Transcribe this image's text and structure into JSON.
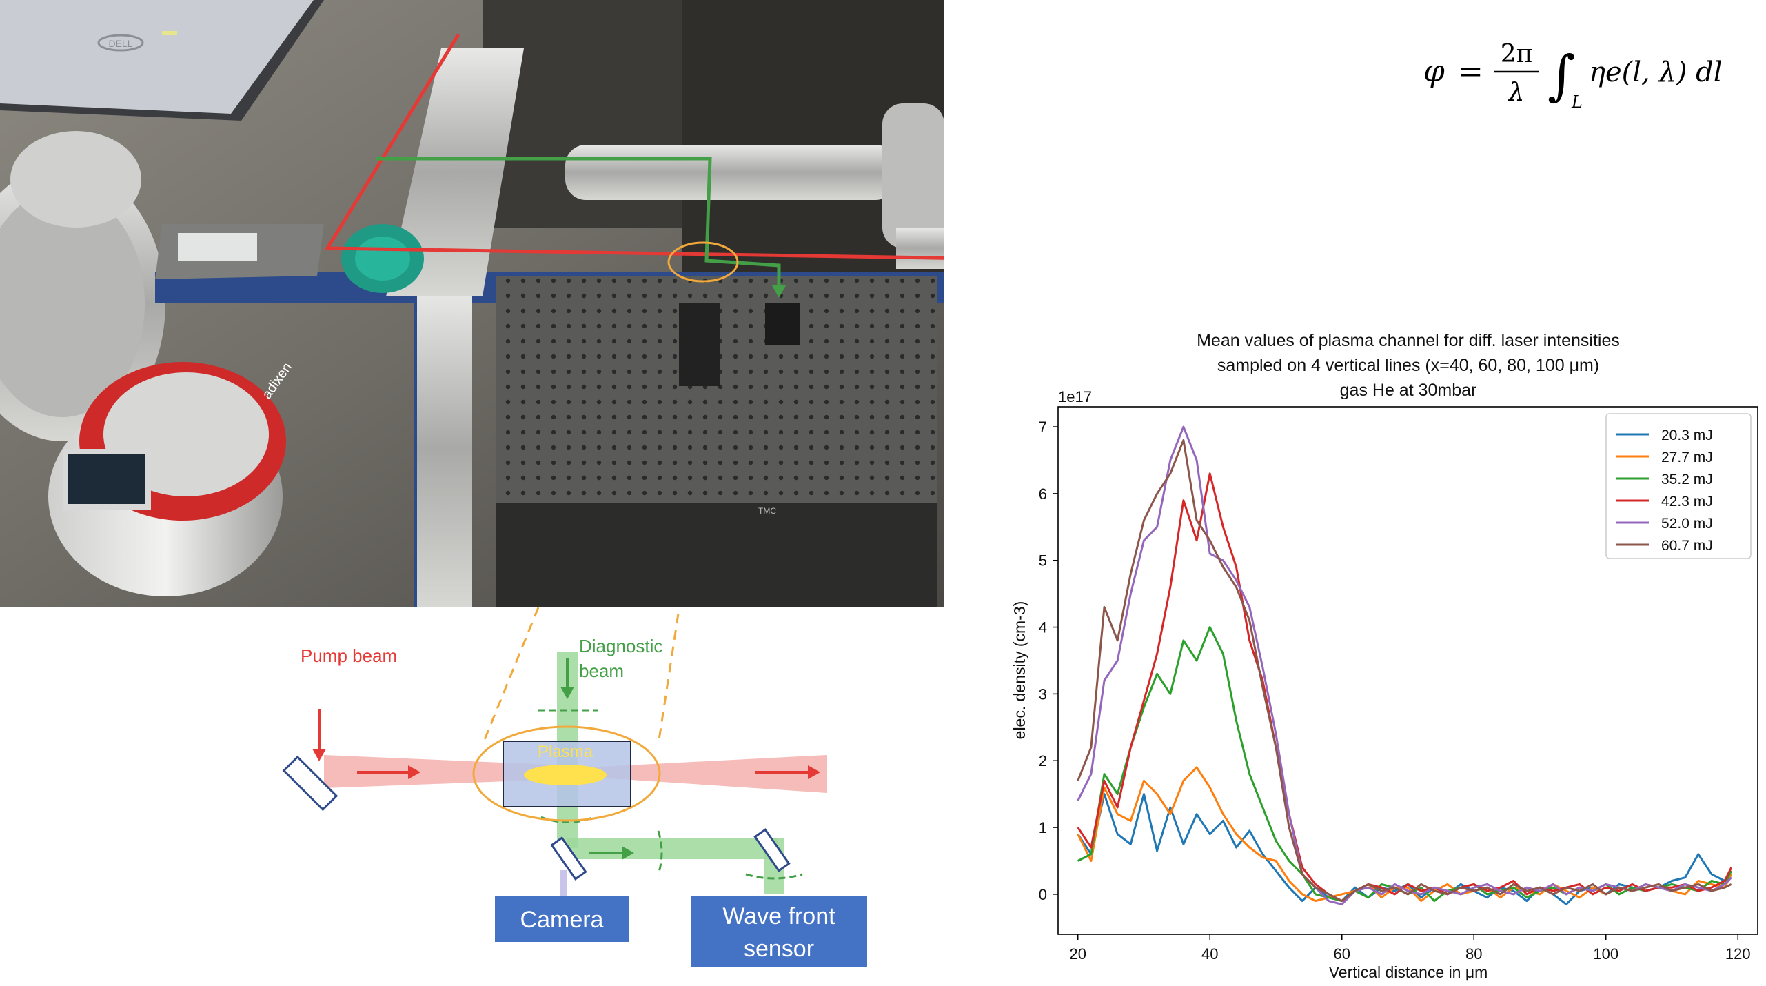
{
  "photo": {
    "laptop_logo": "DELL",
    "pump_brand": "adixen",
    "table_label": "TMC"
  },
  "equation": {
    "lhs": "φ",
    "equals": "=",
    "num": "2π",
    "den": "λ",
    "integral": "∫",
    "sub": "L",
    "body": "ηe(l, λ) dl"
  },
  "schematic": {
    "pump_label": "Pump beam",
    "diag_label_1": "Diagnostic",
    "diag_label_2": "beam",
    "plasma_label": "Plasma",
    "camera_label": "Camera",
    "wfs_label_1": "Wave front",
    "wfs_label_2": "sensor"
  },
  "colors": {
    "pump": "#e53935",
    "diag": "#43a047",
    "ellipse": "#f2a93b",
    "box": "#4472c4",
    "plasma": "#ffe14d"
  },
  "chart_data": {
    "type": "line",
    "title": [
      "Mean values of plasma channel for diff. laser intensities",
      "sampled on 4 vertical lines (x=40, 60, 80, 100 μm)",
      "gas He at 30mbar"
    ],
    "xlabel": "Vertical distance in μm",
    "ylabel": "elec. density (cm-3)",
    "offset_label": "1e17",
    "xlim": [
      17,
      123
    ],
    "ylim": [
      -0.6,
      7.3
    ],
    "xticks": [
      20,
      40,
      60,
      80,
      100,
      120
    ],
    "yticks": [
      0,
      1,
      2,
      3,
      4,
      5,
      6,
      7
    ],
    "legend_position": "top-right",
    "x": [
      20,
      22,
      24,
      26,
      28,
      30,
      32,
      34,
      36,
      38,
      40,
      42,
      44,
      46,
      48,
      50,
      52,
      54,
      56,
      58,
      60,
      62,
      64,
      66,
      68,
      70,
      72,
      74,
      76,
      78,
      80,
      82,
      84,
      86,
      88,
      90,
      92,
      94,
      96,
      98,
      100,
      102,
      104,
      106,
      108,
      110,
      112,
      114,
      116,
      118,
      119
    ],
    "series": [
      {
        "name": "20.3 mJ",
        "color": "#1f77b4",
        "values": [
          0.9,
          0.6,
          1.5,
          0.9,
          0.75,
          1.5,
          0.65,
          1.3,
          0.75,
          1.2,
          0.9,
          1.1,
          0.7,
          0.95,
          0.6,
          0.35,
          0.1,
          -0.1,
          0.1,
          -0.05,
          -0.1,
          0.1,
          -0.05,
          0.1,
          0.05,
          0.15,
          -0.05,
          0.1,
          0.0,
          0.15,
          0.05,
          -0.05,
          0.1,
          0.05,
          -0.1,
          0.1,
          0.0,
          -0.15,
          0.05,
          0.1,
          0.0,
          0.15,
          0.1,
          0.05,
          0.1,
          0.2,
          0.25,
          0.6,
          0.3,
          0.2,
          0.25
        ]
      },
      {
        "name": "27.7 mJ",
        "color": "#ff7f0e",
        "values": [
          0.9,
          0.5,
          1.6,
          1.2,
          1.1,
          1.7,
          1.5,
          1.2,
          1.7,
          1.9,
          1.6,
          1.2,
          0.9,
          0.7,
          0.55,
          0.5,
          0.2,
          0.0,
          -0.1,
          -0.05,
          0.0,
          0.05,
          0.15,
          -0.05,
          0.1,
          0.1,
          -0.1,
          0.05,
          0.15,
          0.0,
          0.05,
          0.1,
          -0.05,
          0.1,
          0.05,
          0.0,
          0.15,
          0.05,
          -0.05,
          0.1,
          0.0,
          0.1,
          0.05,
          0.15,
          0.1,
          0.05,
          0.0,
          0.2,
          0.15,
          0.1,
          0.3
        ]
      },
      {
        "name": "35.2 mJ",
        "color": "#2ca02c",
        "values": [
          0.5,
          0.6,
          1.8,
          1.5,
          2.2,
          2.8,
          3.3,
          3.0,
          3.8,
          3.5,
          4.0,
          3.6,
          2.6,
          1.8,
          1.3,
          0.8,
          0.5,
          0.3,
          0.0,
          -0.05,
          -0.1,
          0.05,
          -0.05,
          0.15,
          0.1,
          0.0,
          0.1,
          -0.1,
          0.05,
          0.1,
          0.15,
          0.0,
          0.05,
          0.1,
          -0.05,
          0.05,
          0.1,
          0.0,
          0.1,
          0.05,
          0.15,
          0.0,
          0.1,
          0.05,
          0.1,
          0.15,
          0.1,
          0.05,
          0.2,
          0.15,
          0.35
        ]
      },
      {
        "name": "42.3 mJ",
        "color": "#d62728",
        "values": [
          1.0,
          0.7,
          1.7,
          1.3,
          2.2,
          2.9,
          3.6,
          4.6,
          5.9,
          5.3,
          6.3,
          5.5,
          4.9,
          3.8,
          3.2,
          2.2,
          1.2,
          0.4,
          0.15,
          0.0,
          -0.1,
          0.05,
          0.15,
          0.1,
          0.0,
          0.15,
          0.05,
          0.1,
          0.0,
          0.1,
          0.15,
          0.05,
          0.1,
          0.2,
          0.0,
          0.1,
          0.05,
          0.1,
          0.15,
          0.0,
          0.1,
          0.05,
          0.15,
          0.05,
          0.1,
          0.1,
          0.15,
          0.05,
          0.1,
          0.2,
          0.4
        ]
      },
      {
        "name": "52.0 mJ",
        "color": "#9467bd",
        "values": [
          1.4,
          1.8,
          3.2,
          3.5,
          4.5,
          5.3,
          5.5,
          6.5,
          7.0,
          6.5,
          5.1,
          5.0,
          4.7,
          4.3,
          3.4,
          2.4,
          1.2,
          0.3,
          0.1,
          -0.1,
          -0.15,
          0.05,
          0.1,
          0.0,
          0.15,
          0.05,
          0.0,
          0.1,
          0.05,
          0.0,
          0.1,
          0.15,
          0.05,
          0.0,
          0.1,
          0.05,
          0.15,
          0.0,
          0.1,
          0.05,
          0.15,
          0.1,
          0.05,
          0.15,
          0.1,
          0.05,
          0.15,
          0.1,
          0.05,
          0.15,
          0.25
        ]
      },
      {
        "name": "60.7 mJ",
        "color": "#8c564b",
        "values": [
          1.7,
          2.2,
          4.3,
          3.8,
          4.8,
          5.6,
          6.0,
          6.3,
          6.8,
          5.6,
          5.3,
          4.9,
          4.6,
          4.1,
          3.1,
          2.2,
          1.0,
          0.3,
          0.1,
          0.0,
          -0.1,
          0.05,
          0.15,
          0.05,
          0.1,
          0.0,
          0.15,
          0.05,
          0.0,
          0.1,
          0.05,
          0.1,
          0.0,
          0.15,
          0.05,
          0.1,
          0.0,
          0.1,
          0.05,
          0.15,
          0.0,
          0.1,
          0.05,
          0.1,
          0.15,
          0.05,
          0.1,
          0.15,
          0.05,
          0.1,
          0.15
        ]
      }
    ]
  }
}
